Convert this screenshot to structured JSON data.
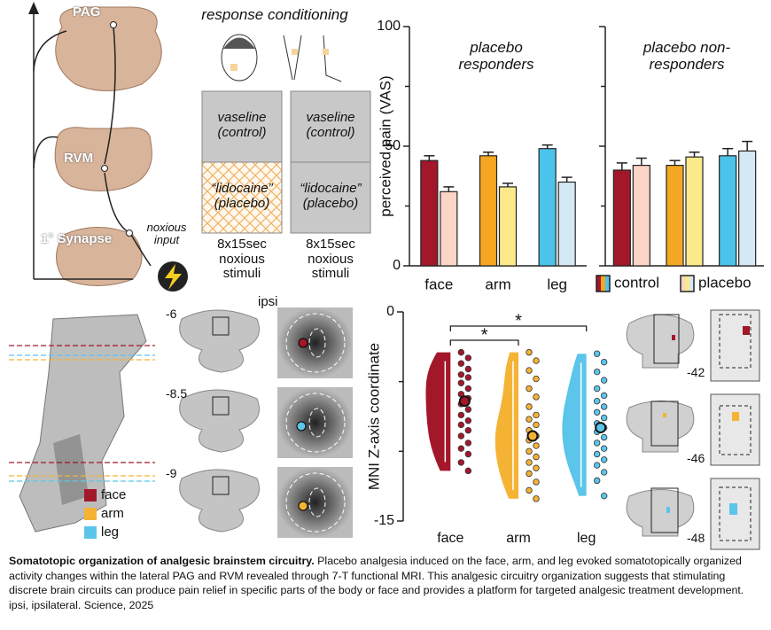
{
  "diagram": {
    "pag": "PAG",
    "rvm": "RVM",
    "synapse": "1° Synapse",
    "input": "noxious input"
  },
  "conditioning": {
    "title": "response conditioning",
    "columns": [
      {
        "top": "vaseline (control)",
        "bottom": "“lidocaine” (placebo)",
        "note": "8x15sec noxious stimuli"
      },
      {
        "top": "vaseline (control)",
        "bottom": "“lidocaine” (placebo)",
        "note": "8x15sec noxious stimuli"
      }
    ]
  },
  "slices": {
    "ipsi": "ipsi",
    "pag_levels": [
      "-6",
      "-8.5",
      "-9"
    ],
    "rvm_levels": [
      "-42",
      "-46",
      "-48"
    ],
    "legend": [
      "face",
      "arm",
      "leg"
    ]
  },
  "chart_data": [
    {
      "type": "bar",
      "title": "placebo responders",
      "ylabel": "perceived pain (VAS)",
      "categories": [
        "face",
        "arm",
        "leg"
      ],
      "ylim": [
        0,
        100
      ],
      "yticks": [
        0,
        50,
        100
      ],
      "minor_yticks": [
        25,
        75
      ],
      "series": [
        {
          "name": "control",
          "colors": [
            "#a3172a",
            "#f5a623",
            "#4cc3ea"
          ],
          "values": [
            44,
            46,
            49
          ],
          "errors": [
            2,
            1.5,
            1.5
          ]
        },
        {
          "name": "placebo",
          "colors": [
            "#fbd5c8",
            "#fbe98a",
            "#d4e8f5"
          ],
          "values": [
            31,
            33,
            35
          ],
          "errors": [
            2,
            1.5,
            2
          ]
        }
      ]
    },
    {
      "type": "bar",
      "title": "placebo non-responders",
      "ylim": [
        0,
        100
      ],
      "yticks": [
        0,
        50,
        100
      ],
      "minor_yticks": [
        25,
        75
      ],
      "series": [
        {
          "name": "control",
          "colors": [
            "#a3172a",
            "#f5a623",
            "#4cc3ea"
          ],
          "values": [
            40,
            42,
            46
          ],
          "errors": [
            3,
            2,
            3
          ]
        },
        {
          "name": "placebo",
          "colors": [
            "#fbd5c8",
            "#fbe98a",
            "#d4e8f5"
          ],
          "values": [
            42,
            45.5,
            48
          ],
          "errors": [
            3,
            2,
            4
          ]
        }
      ]
    },
    {
      "type": "violin",
      "ylabel": "MNI  Z-axis coordinate",
      "categories": [
        "face",
        "arm",
        "leg"
      ],
      "ylim": [
        -15,
        0
      ],
      "yticks": [
        -15,
        0
      ],
      "minor_yticks": [
        -10,
        -5
      ],
      "series": [
        {
          "color": "#a3172a",
          "mean": -6.4,
          "values": [
            -2.9,
            -3.3,
            -3.7,
            -4.1,
            -4.5,
            -4.7,
            -5.1,
            -5.5,
            -5.9,
            -6.2,
            -6.6,
            -7.0,
            -7.4,
            -7.8,
            -8.1,
            -8.5,
            -8.9,
            -9.4,
            -9.8,
            -10.2,
            -10.8,
            -11.4
          ]
        },
        {
          "color": "#f5b335",
          "mean": -8.9,
          "values": [
            -2.9,
            -3.5,
            -4.2,
            -4.8,
            -5.5,
            -6.1,
            -6.8,
            -7.4,
            -7.7,
            -8.1,
            -8.5,
            -8.9,
            -9.2,
            -9.6,
            -10.0,
            -10.4,
            -10.8,
            -11.2,
            -11.6,
            -12.2,
            -12.8,
            -13.4
          ]
        },
        {
          "color": "#5bc5ea",
          "mean": -8.3,
          "values": [
            -3.0,
            -3.6,
            -4.3,
            -4.9,
            -5.5,
            -6.0,
            -6.4,
            -6.8,
            -7.2,
            -7.6,
            -8.0,
            -8.3,
            -8.6,
            -9.0,
            -9.4,
            -9.8,
            -10.2,
            -10.6,
            -11.0,
            -11.5,
            -12.1,
            -13.2
          ]
        }
      ],
      "annotations": [
        {
          "from": 0,
          "to": 1,
          "label": "*"
        },
        {
          "from": 0,
          "to": 2,
          "label": "*"
        }
      ]
    }
  ],
  "caption": {
    "title": "Somatotopic organization of analgesic brainstem circuitry.",
    "text": "Placebo analgesia induced on the face, arm, and leg evoked somatotopically organized activity changes within the lateral PAG and RVM revealed through 7-T functional MRI. This analgesic circuitry organization suggests that stimulating discrete brain circuits can produce pain relief in specific parts of the body or face and provides a platform for targeted analgesic treatment development. ipsi, ipsilateral. Science, 2025"
  }
}
